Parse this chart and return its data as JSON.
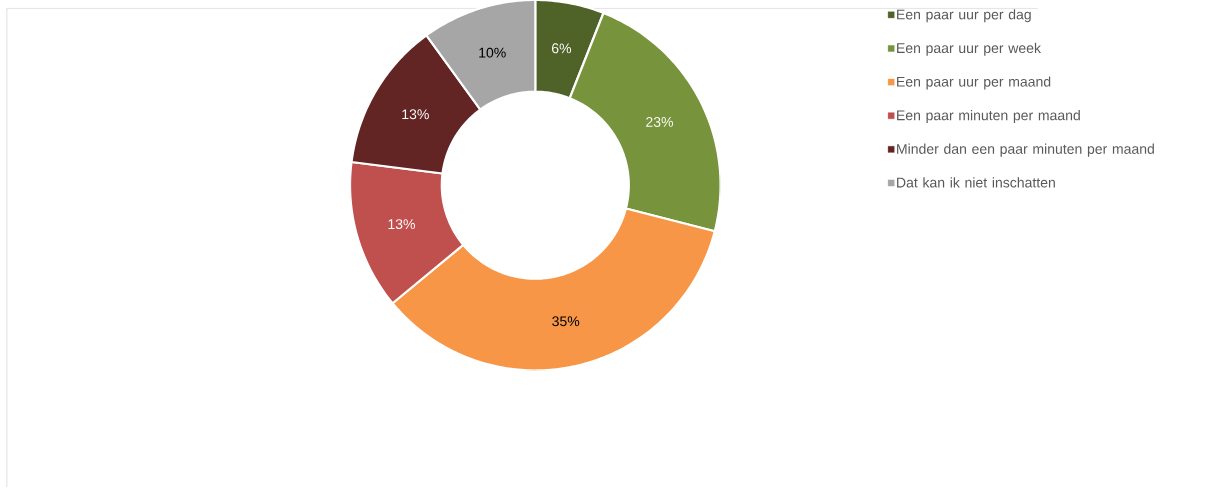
{
  "chart_data": {
    "type": "donut",
    "categories": [
      "Een paar uur per dag",
      "Een paar uur per week",
      "Een paar uur per maand",
      "Een paar minuten per maand",
      "Minder dan een paar minuten per maand",
      "Dat kan ik niet inschatten"
    ],
    "values": [
      6,
      23,
      35,
      13,
      13,
      10
    ],
    "value_labels": [
      "6%",
      "23%",
      "35%",
      "13%",
      "13%",
      "10%"
    ],
    "colors": [
      "#4f6228",
      "#77933c",
      "#f79646",
      "#c0504d",
      "#632523",
      "#a6a6a6"
    ],
    "legend": "right"
  }
}
